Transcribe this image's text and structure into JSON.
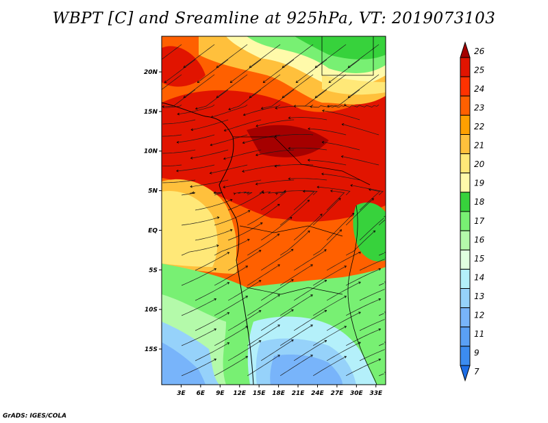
{
  "title": "WBPT [C] and Sreamline at 925hPa, VT: 2019073103",
  "footer": "GrADS: IGES/COLA",
  "map": {
    "lon_range": [
      0,
      34.5
    ],
    "lat_range": [
      -19.5,
      24.5
    ],
    "lon_ticks": [
      {
        "value": 3,
        "label": "3E"
      },
      {
        "value": 6,
        "label": "6E"
      },
      {
        "value": 9,
        "label": "9E"
      },
      {
        "value": 12,
        "label": "12E"
      },
      {
        "value": 15,
        "label": "15E"
      },
      {
        "value": 18,
        "label": "18E"
      },
      {
        "value": 21,
        "label": "21E"
      },
      {
        "value": 24,
        "label": "24E"
      },
      {
        "value": 27,
        "label": "27E"
      },
      {
        "value": 30,
        "label": "30E"
      },
      {
        "value": 33,
        "label": "33E"
      }
    ],
    "lat_ticks": [
      {
        "value": 20,
        "label": "20N"
      },
      {
        "value": 15,
        "label": "15N"
      },
      {
        "value": 10,
        "label": "10N"
      },
      {
        "value": 5,
        "label": "5N"
      },
      {
        "value": 0,
        "label": "EQ"
      },
      {
        "value": -5,
        "label": "5S"
      },
      {
        "value": -10,
        "label": "10S"
      },
      {
        "value": -15,
        "label": "15S"
      }
    ]
  },
  "colorbar": {
    "levels": [
      "7",
      "9",
      "11",
      "12",
      "13",
      "14",
      "15",
      "16",
      "17",
      "18",
      "19",
      "20",
      "21",
      "22",
      "23",
      "24",
      "25",
      "26"
    ],
    "colors": [
      "#1e6ee6",
      "#3c8cf0",
      "#5aa0f5",
      "#78b4fa",
      "#96d2fa",
      "#b4f0fa",
      "#e1ffe1",
      "#b4faaa",
      "#78f073",
      "#37d23c",
      "#fffaaa",
      "#ffe878",
      "#ffc03c",
      "#ffa000",
      "#ff6000",
      "#ff3200",
      "#e11400",
      "#a50000"
    ]
  }
}
